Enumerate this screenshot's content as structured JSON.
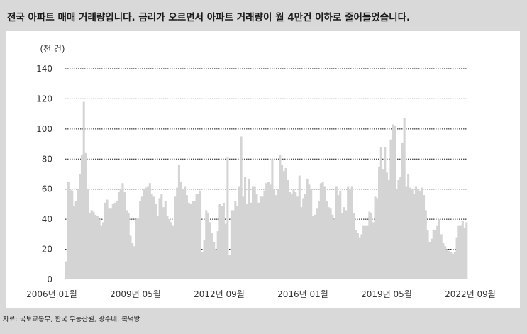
{
  "title": "전국 아파트 매매 거래량입니다. 금리가 오르면서 아파트 거래량이 월 4만건 이하로 줄어들었습니다.",
  "source": "자료: 국토교통부, 한국 부동산원, 광수네, 복덕방",
  "colors": {
    "bar": "#d4d4d4",
    "grid": "#111111",
    "panel_border": "#d9d9d9"
  },
  "chart_data": {
    "type": "bar",
    "unit_label": "(천 건)",
    "ylim": [
      0,
      140
    ],
    "y_ticks": [
      0,
      20,
      40,
      60,
      80,
      100,
      120,
      140
    ],
    "x_tick_labels": [
      "2006년 01월",
      "2009년 05월",
      "2012년 09월",
      "2016년 01월",
      "2019년 05월",
      "2022년 09월"
    ],
    "grid": "dotted horizontal",
    "categories_range": [
      "2006-01",
      "2023-03"
    ],
    "values": [
      12,
      65,
      60,
      59,
      49,
      52,
      60,
      70,
      83,
      118,
      84,
      60,
      44,
      46,
      45,
      43,
      42,
      40,
      36,
      38,
      51,
      53,
      47,
      47,
      50,
      51,
      52,
      58,
      60,
      64,
      58,
      46,
      44,
      29,
      24,
      22,
      40,
      41,
      52,
      55,
      60,
      61,
      62,
      64,
      57,
      55,
      50,
      42,
      54,
      57,
      48,
      52,
      42,
      40,
      38,
      36,
      55,
      61,
      76,
      65,
      60,
      62,
      56,
      51,
      50,
      52,
      52,
      57,
      57,
      59,
      18,
      26,
      46,
      44,
      38,
      31,
      25,
      20,
      32,
      50,
      49,
      51,
      37,
      81,
      16,
      46,
      46,
      52,
      49,
      62,
      95,
      55,
      68,
      50,
      67,
      51,
      62,
      62,
      57,
      51,
      55,
      55,
      59,
      64,
      65,
      63,
      80,
      60,
      56,
      60,
      83,
      76,
      72,
      74,
      66,
      58,
      57,
      60,
      58,
      55,
      69,
      48,
      54,
      57,
      67,
      63,
      60,
      42,
      43,
      47,
      52,
      64,
      65,
      62,
      52,
      48,
      47,
      43,
      40,
      62,
      56,
      59,
      44,
      48,
      46,
      62,
      60,
      62,
      44,
      33,
      31,
      28,
      30,
      36,
      36,
      36,
      45,
      44,
      38,
      55,
      54,
      75,
      88,
      73,
      88,
      71,
      66,
      93,
      103,
      102,
      60,
      66,
      68,
      91,
      107,
      62,
      70,
      61,
      60,
      57,
      62,
      60,
      59,
      61,
      56,
      46,
      33,
      25,
      27,
      33,
      33,
      36,
      40,
      30,
      24,
      22,
      20,
      19,
      18,
      17,
      18,
      28,
      36,
      36,
      39,
      34,
      38
    ]
  }
}
